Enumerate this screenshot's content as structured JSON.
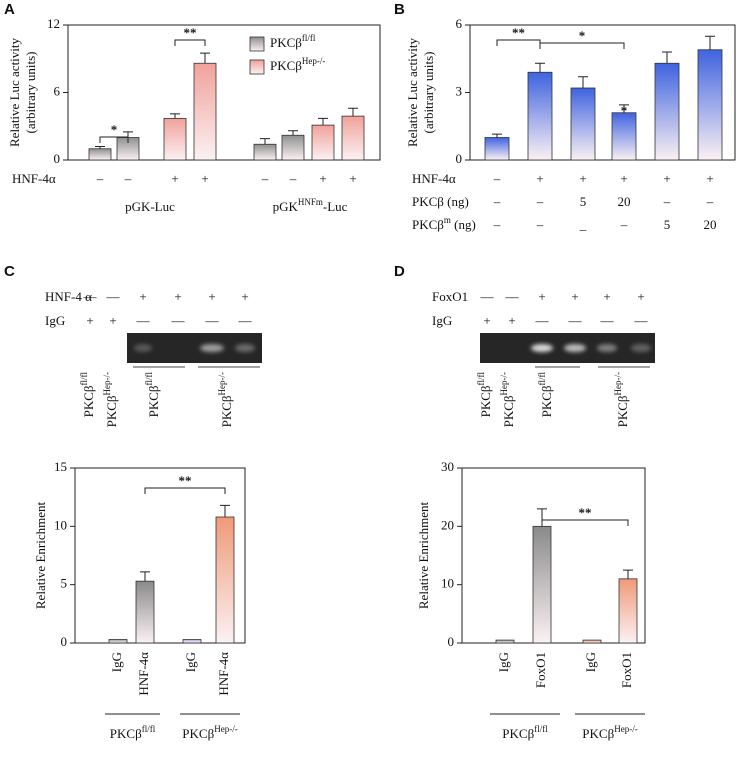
{
  "chart_data": [
    {
      "panel": "A",
      "type": "bar",
      "y_label": [
        "Relative Luc activity",
        "(arbitrary units)"
      ],
      "categories": [
        null,
        null,
        null,
        null,
        null,
        null,
        null,
        null
      ],
      "series": [
        {
          "name": {
            "text": "PKCβ",
            "sup": "fl/fl"
          },
          "color": "#8f8f8f",
          "values": [
            1.0,
            2.0,
            null,
            null,
            1.4,
            2.2,
            null,
            null
          ],
          "errors": [
            0.2,
            0.5,
            null,
            null,
            0.5,
            0.4,
            null,
            null
          ]
        },
        {
          "name": {
            "text": "PKCβ",
            "sup": "Hep-/-"
          },
          "color": "#f0a29a",
          "values": [
            null,
            null,
            3.7,
            8.6,
            null,
            null,
            3.1,
            3.9
          ],
          "errors": [
            null,
            null,
            0.4,
            0.9,
            null,
            null,
            0.6,
            0.7
          ]
        }
      ],
      "ylim": [
        0,
        12
      ],
      "yticks": [
        0,
        6,
        12
      ],
      "condition_rows": [
        {
          "label": "HNF-4α",
          "marks": [
            "–",
            "–",
            "+",
            "+",
            "–",
            "–",
            "+",
            "+"
          ]
        }
      ],
      "groups": [
        {
          "text": "pGK-Luc"
        },
        {
          "text": "pGK",
          "sup": "HNFm",
          "tail": "-Luc"
        }
      ],
      "significance": [
        "*",
        "**"
      ]
    },
    {
      "panel": "B",
      "type": "bar",
      "y_label": [
        "Relative Luc activity",
        "(arbitrary units)"
      ],
      "categories": [
        null,
        null,
        null,
        null,
        null,
        null
      ],
      "values": [
        1.0,
        3.9,
        3.2,
        2.1,
        4.3,
        4.9
      ],
      "errors": [
        0.15,
        0.4,
        0.5,
        0.35,
        0.5,
        0.6
      ],
      "color": "#3f63e0",
      "ylim": [
        0,
        6
      ],
      "yticks": [
        0,
        3,
        6
      ],
      "condition_rows": [
        {
          "label": "HNF-4α",
          "marks": [
            "–",
            "+",
            "+",
            "+",
            "+",
            "+"
          ]
        },
        {
          "label": "PKCβ (ng)",
          "marks": [
            "–",
            "–",
            "5",
            "20",
            "–",
            "–"
          ]
        },
        {
          "label": {
            "text": "PKCβ",
            "sup": "m",
            "tail": " (ng)"
          },
          "marks": [
            "–",
            "–",
            "_",
            "–",
            "5",
            "20"
          ]
        }
      ],
      "significance": [
        "**",
        "*",
        "*"
      ]
    },
    {
      "panel": "C",
      "type": "bar",
      "y_label": [
        "Relative Enrichment"
      ],
      "categories": [
        "IgG",
        "HNF-4α",
        "IgG",
        "HNF-4α"
      ],
      "values": [
        0.3,
        5.3,
        0.3,
        10.8
      ],
      "errors": [
        null,
        0.8,
        null,
        1.0
      ],
      "colors": [
        "#9a9a9a",
        "#8a8a8a",
        "#b9a8d8",
        "#ef9a78"
      ],
      "ylim": [
        0,
        15
      ],
      "yticks": [
        0,
        5,
        10,
        15
      ],
      "groups": [
        {
          "text": "PKCβ",
          "sup": "fl/fl"
        },
        {
          "text": "PKCβ",
          "sup": "Hep-/-"
        }
      ],
      "significance": [
        "**"
      ],
      "gel": {
        "rows": [
          {
            "label": "HNF-4 α",
            "marks": [
              "—",
              "—",
              "+",
              "+",
              "+",
              "+"
            ]
          },
          {
            "label": "IgG",
            "marks": [
              "+",
              "+",
              "—",
              "—",
              "—",
              "—"
            ]
          }
        ],
        "lane_labels": [
          {
            "text": "PKCβ",
            "sup": "fl/fl"
          },
          {
            "text": "PKCβ",
            "sup": "Hep-/-"
          },
          {
            "text": "PKCβ",
            "sup": "fl/fl"
          },
          {
            "text": "PKCβ",
            "sup": "Hep-/-"
          }
        ]
      }
    },
    {
      "panel": "D",
      "type": "bar",
      "y_label": [
        "Relative Enrichment"
      ],
      "categories": [
        "IgG",
        "FoxO1",
        "IgG",
        "FoxO1"
      ],
      "values": [
        0.5,
        20,
        0.5,
        11
      ],
      "errors": [
        null,
        3,
        null,
        1.5
      ],
      "colors": [
        "#9a9a9a",
        "#8a8a8a",
        "#e79a88",
        "#ef9a78"
      ],
      "ylim": [
        0,
        30
      ],
      "yticks": [
        0,
        10,
        20,
        30
      ],
      "groups": [
        {
          "text": "PKCβ",
          "sup": "fl/fl"
        },
        {
          "text": "PKCβ",
          "sup": "Hep-/-"
        }
      ],
      "significance": [
        "**"
      ],
      "gel": {
        "rows": [
          {
            "label": "FoxO1",
            "marks": [
              "—",
              "—",
              "+",
              "+",
              "+",
              "+"
            ]
          },
          {
            "label": "IgG",
            "marks": [
              "+",
              "+",
              "—",
              "—",
              "—",
              "—"
            ]
          }
        ],
        "lane_labels": [
          {
            "text": "PKCβ",
            "sup": "fl/fl"
          },
          {
            "text": "PKCβ",
            "sup": "Hep-/-"
          },
          {
            "text": "PKCβ",
            "sup": "fl/fl"
          },
          {
            "text": "PKCβ",
            "sup": "Hep-/-"
          }
        ]
      }
    }
  ]
}
